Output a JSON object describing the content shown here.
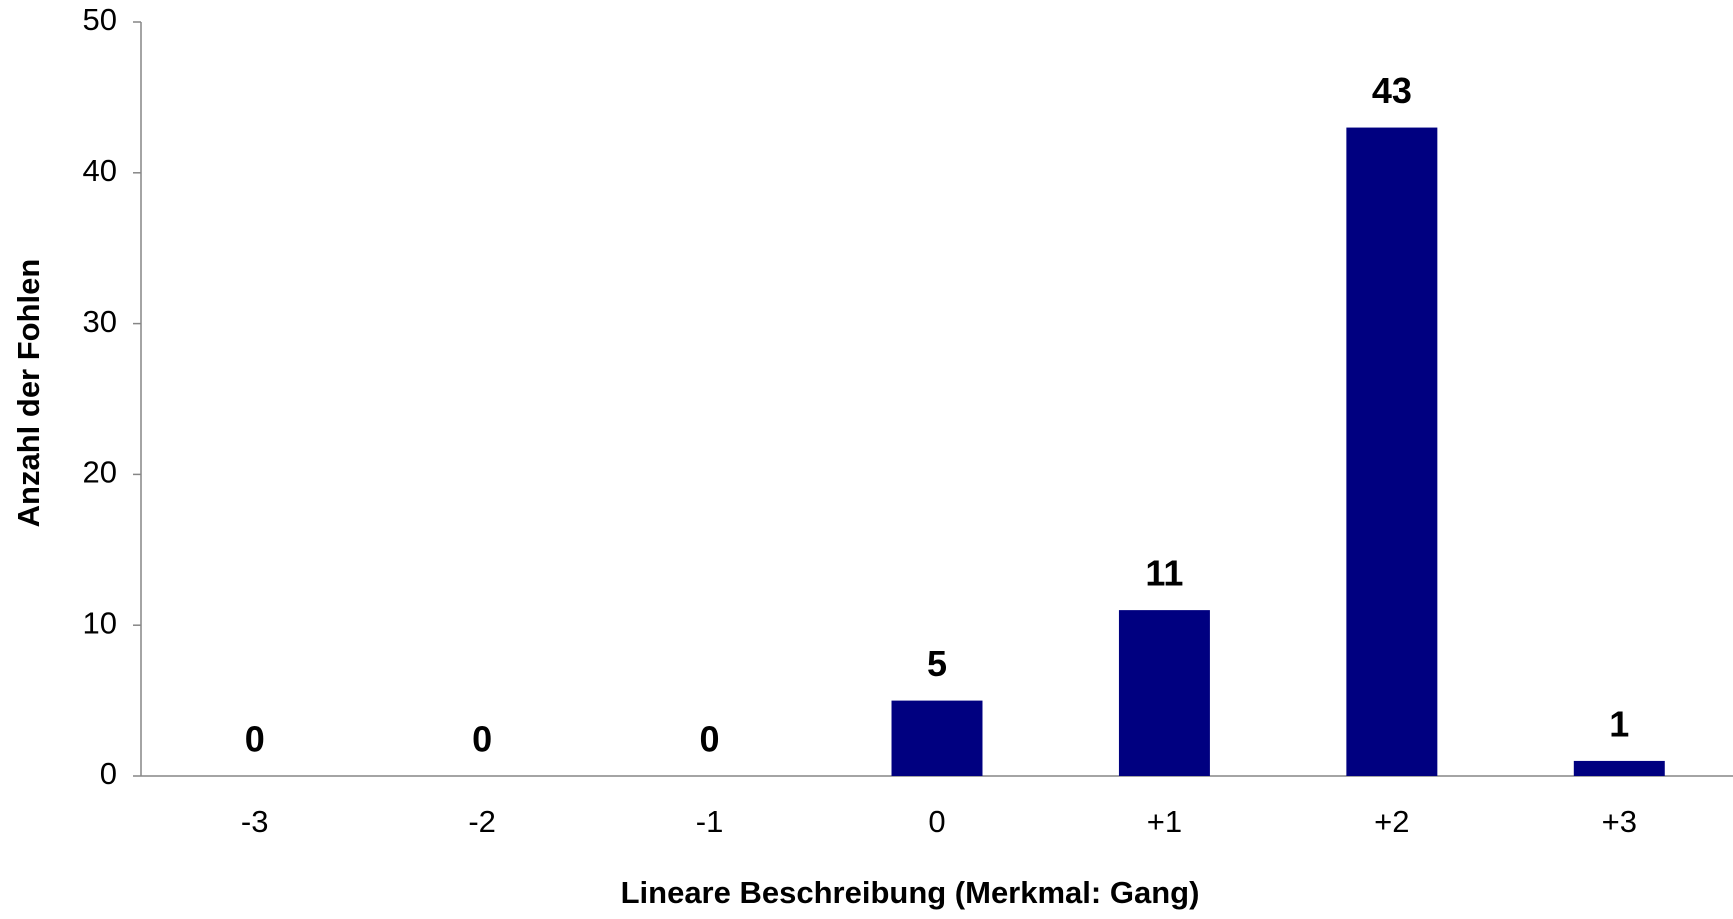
{
  "chart_data": {
    "type": "bar",
    "x_label": "Lineare Beschreibung (Merkmal: Gang)",
    "y_label": "Anzahl der Fohlen",
    "categories": [
      "-3",
      "-2",
      "-1",
      "0",
      "+1",
      "+2",
      "+3"
    ],
    "values": [
      0,
      0,
      0,
      5,
      11,
      43,
      1
    ],
    "color": "#000080",
    "ylim": [
      0,
      50
    ],
    "yticks": [
      0,
      10,
      20,
      30,
      40,
      50
    ],
    "grid": false
  }
}
